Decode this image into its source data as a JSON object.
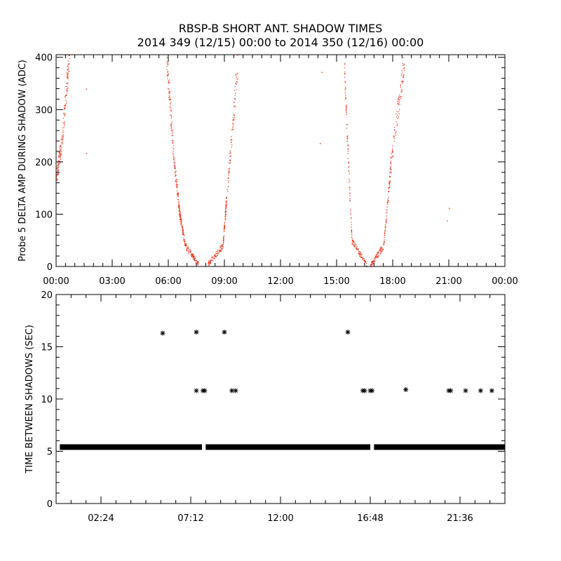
{
  "title": "RBSP-B SHORT ANT. SHADOW TIMES",
  "subtitle": "2014 349 (12/15) 00:00 to 2014 350 (12/16) 00:00",
  "colors": {
    "top_points": "#e8381c",
    "bottom_points": "#000000",
    "axes": "#000000"
  },
  "chart_data": [
    {
      "type": "scatter",
      "ylabel": "Probe 5 DELTA AMP DURING SHADOW (ADC)",
      "xlabel": "",
      "x_unit": "hours since 2014-12-15 00:00",
      "xlim": [
        0,
        24
      ],
      "ylim": [
        0,
        405
      ],
      "y_ticks": [
        0,
        100,
        200,
        300,
        400
      ],
      "y_tick_labels": [
        "0",
        "100",
        "200",
        "300",
        "400"
      ],
      "x_ticks": [
        0,
        3,
        6,
        9,
        12,
        15,
        18,
        21,
        24
      ],
      "x_tick_labels": [
        "00:00",
        "03:00",
        "06:00",
        "09:00",
        "12:00",
        "15:00",
        "18:00",
        "21:00",
        "00:00"
      ],
      "grid": false,
      "marker": "dot",
      "segments": [
        {
          "x": [
            0.0,
            0.3
          ],
          "y": [
            170,
            240
          ]
        },
        {
          "x": [
            0.3,
            0.7
          ],
          "y": [
            240,
            405
          ]
        },
        {
          "x": [
            5.9,
            6.3
          ],
          "y": [
            400,
            200
          ]
        },
        {
          "x": [
            6.3,
            6.6
          ],
          "y": [
            200,
            100
          ]
        },
        {
          "x": [
            6.6,
            6.9
          ],
          "y": [
            100,
            40
          ]
        },
        {
          "x": [
            6.9,
            7.6
          ],
          "y": [
            40,
            5
          ]
        },
        {
          "x": [
            8.1,
            8.9
          ],
          "y": [
            5,
            40
          ]
        },
        {
          "x": [
            8.9,
            9.1
          ],
          "y": [
            40,
            130
          ]
        },
        {
          "x": [
            9.1,
            9.7
          ],
          "y": [
            130,
            390
          ]
        },
        {
          "x": [
            15.4,
            15.8
          ],
          "y": [
            380,
            50
          ]
        },
        {
          "x": [
            15.8,
            16.6
          ],
          "y": [
            50,
            3
          ]
        },
        {
          "x": [
            16.8,
            17.5
          ],
          "y": [
            3,
            40
          ]
        },
        {
          "x": [
            17.5,
            17.9
          ],
          "y": [
            40,
            200
          ]
        },
        {
          "x": [
            17.9,
            18.6
          ],
          "y": [
            200,
            390
          ]
        }
      ],
      "isolated_points": [
        {
          "x": 1.6,
          "y": 340
        },
        {
          "x": 1.6,
          "y": 217
        },
        {
          "x": 14.2,
          "y": 372
        },
        {
          "x": 14.1,
          "y": 236
        },
        {
          "x": 20.9,
          "y": 88
        },
        {
          "x": 21.0,
          "y": 112
        }
      ]
    },
    {
      "type": "scatter",
      "ylabel": "TIME BETWEEN SHADOWS (SEC)",
      "xlabel": "",
      "x_unit": "hours since 2014-12-15 00:00",
      "xlim": [
        0,
        24
      ],
      "ylim": [
        0,
        20
      ],
      "y_ticks": [
        0,
        5,
        10,
        15,
        20
      ],
      "y_tick_labels": [
        "0",
        "5",
        "10",
        "15",
        "20"
      ],
      "x_ticks": [
        2.4,
        7.2,
        12.0,
        16.8,
        21.6
      ],
      "x_tick_labels": [
        "02:24",
        "07:12",
        "12:00",
        "16:48",
        "21:36"
      ],
      "grid": false,
      "marker": "asterisk",
      "baseline": {
        "y": 5.4,
        "x_ranges": [
          [
            0.2,
            7.8
          ],
          [
            8.0,
            16.8
          ],
          [
            17.0,
            24.0
          ]
        ]
      },
      "points": [
        {
          "x": 5.7,
          "y": 16.3
        },
        {
          "x": 7.5,
          "y": 16.4
        },
        {
          "x": 9.0,
          "y": 16.4
        },
        {
          "x": 15.6,
          "y": 16.4
        },
        {
          "x": 7.5,
          "y": 10.8
        },
        {
          "x": 7.85,
          "y": 10.8
        },
        {
          "x": 7.95,
          "y": 10.8
        },
        {
          "x": 9.4,
          "y": 10.8
        },
        {
          "x": 9.6,
          "y": 10.8
        },
        {
          "x": 16.4,
          "y": 10.8
        },
        {
          "x": 16.5,
          "y": 10.8
        },
        {
          "x": 16.8,
          "y": 10.8
        },
        {
          "x": 16.9,
          "y": 10.8
        },
        {
          "x": 18.7,
          "y": 10.9
        },
        {
          "x": 21.0,
          "y": 10.8
        },
        {
          "x": 21.1,
          "y": 10.8
        },
        {
          "x": 21.9,
          "y": 10.8
        },
        {
          "x": 22.7,
          "y": 10.8
        },
        {
          "x": 23.3,
          "y": 10.8
        }
      ]
    }
  ]
}
